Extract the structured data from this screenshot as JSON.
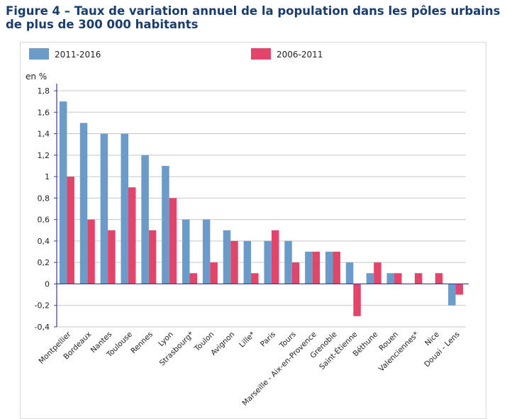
{
  "figure": {
    "title": "Figure 4 – Taux de variation annuel de la population dans les pôles urbains de plus de 300 000 habitants"
  },
  "chart_data": {
    "type": "bar",
    "title": "Figure 4 – Taux de variation annuel de la population dans les pôles urbains de plus de 300 000 habitants",
    "ylabel": "en %",
    "xlabel": "",
    "ylim": [
      -0.4,
      1.8
    ],
    "yticks": [
      -0.4,
      -0.2,
      0,
      0.2,
      0.4,
      0.6,
      0.8,
      1,
      1.2,
      1.4,
      1.6,
      1.8
    ],
    "ytick_labels": [
      "-0,4",
      "-0,2",
      "0",
      "0,2",
      "0,4",
      "0,6",
      "0,8",
      "1",
      "1,2",
      "1,4",
      "1,6",
      "1,8"
    ],
    "grid": true,
    "legend_position": "top",
    "categories": [
      "Montpellier",
      "Bordeaux",
      "Nantes",
      "Toulouse",
      "Rennes",
      "Lyon",
      "Strasbourg*",
      "Toulon",
      "Avignon",
      "Lille*",
      "Paris",
      "Tours",
      "Marseille - Aix-en-Provence",
      "Grenoble",
      "Saint-Étienne",
      "Béthune",
      "Rouen",
      "Valenciennes*",
      "Nice",
      "Douai - Lens"
    ],
    "series": [
      {
        "name": "2011-2016",
        "color": "#6b9bc8",
        "values": [
          1.7,
          1.5,
          1.4,
          1.4,
          1.2,
          1.1,
          0.6,
          0.6,
          0.5,
          0.4,
          0.4,
          0.4,
          0.3,
          0.3,
          0.2,
          0.1,
          0.1,
          0.0,
          0.0,
          -0.2
        ]
      },
      {
        "name": "2006-2011",
        "color": "#e2456a",
        "values": [
          1.0,
          0.6,
          0.5,
          0.9,
          0.5,
          0.8,
          0.1,
          0.2,
          0.4,
          0.1,
          0.5,
          0.2,
          0.3,
          0.3,
          -0.3,
          0.2,
          0.1,
          0.1,
          0.1,
          -0.1
        ]
      }
    ]
  }
}
